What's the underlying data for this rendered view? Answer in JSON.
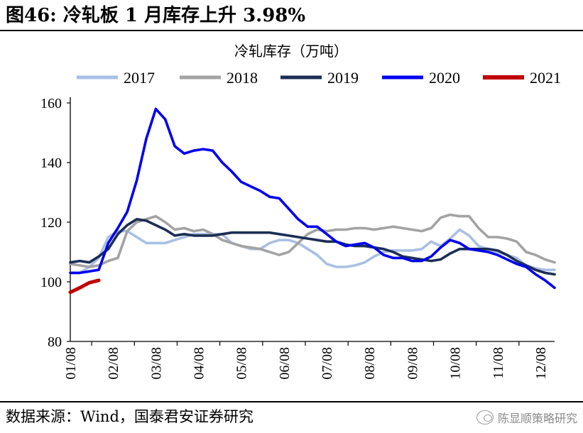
{
  "figure": {
    "title": "图46: 冷轧板 1 月库存上升 3.98%",
    "source": "数据来源：Wind，国泰君安证券研究",
    "watermark": "陈显顺策略研究"
  },
  "chart_data": {
    "type": "line",
    "title": "冷轧库存（万吨）",
    "xlabel": "",
    "ylabel": "",
    "ylim": [
      80,
      160
    ],
    "yticks": [
      80,
      100,
      120,
      140,
      160
    ],
    "xlim": [
      1,
      52
    ],
    "x_tick_labels": [
      "01/08",
      "02/08",
      "03/08",
      "04/08",
      "05/08",
      "06/08",
      "07/08",
      "08/08",
      "09/08",
      "10/08",
      "11/08",
      "12/08"
    ],
    "x_tick_weeks": [
      1,
      5.5,
      10,
      14.5,
      19,
      23.5,
      28,
      32.5,
      37,
      41.5,
      46,
      50.5
    ],
    "legend_position": "top",
    "grid": false,
    "series": [
      {
        "name": "2017",
        "color": "#a9c0e4",
        "x": [
          1,
          2,
          3,
          4,
          5,
          6,
          7,
          8,
          9,
          10,
          11,
          12,
          13,
          14,
          15,
          16,
          17,
          18,
          19,
          20,
          21,
          22,
          23,
          24,
          25,
          26,
          27,
          28,
          29,
          30,
          31,
          32,
          33,
          34,
          35,
          36,
          37,
          38,
          39,
          40,
          41,
          42,
          43,
          44,
          45,
          46,
          47,
          48,
          49,
          50,
          51,
          52
        ],
        "values": [
          103,
          103,
          105,
          108,
          115,
          117,
          117,
          115,
          113,
          113,
          113,
          114,
          115,
          116,
          116,
          116,
          116,
          113,
          112,
          111,
          111,
          113,
          114,
          114,
          113,
          111,
          109,
          106,
          105,
          105,
          105.5,
          106.5,
          108.5,
          110,
          110.5,
          110.5,
          110.5,
          111,
          113.5,
          112,
          114.5,
          117.5,
          115.5,
          112,
          111,
          110,
          109,
          108,
          105.5,
          104.5,
          104,
          104
        ]
      },
      {
        "name": "2018",
        "color": "#a3a3a3",
        "x": [
          1,
          2,
          3,
          4,
          5,
          6,
          7,
          8,
          9,
          10,
          11,
          12,
          13,
          14,
          15,
          16,
          17,
          18,
          19,
          20,
          21,
          22,
          23,
          24,
          25,
          26,
          27,
          28,
          29,
          30,
          31,
          32,
          33,
          34,
          35,
          36,
          37,
          38,
          39,
          40,
          41,
          42,
          43,
          44,
          45,
          46,
          47,
          48,
          49,
          50,
          51,
          52
        ],
        "values": [
          106,
          105.5,
          105,
          105.5,
          107,
          108,
          117,
          120,
          121,
          122,
          120,
          117.5,
          118,
          117,
          117.5,
          116,
          114,
          113,
          112,
          111.5,
          111,
          110,
          109,
          110,
          113,
          116,
          117.5,
          117,
          117.5,
          117.5,
          118,
          118,
          117.5,
          118,
          118.5,
          118,
          117.5,
          117,
          118,
          121.5,
          122.5,
          122,
          122,
          118,
          115,
          115,
          114.5,
          113.5,
          110,
          109,
          107.5,
          106.5
        ]
      },
      {
        "name": "2019",
        "color": "#1c2e55",
        "x": [
          1,
          2,
          3,
          4,
          5,
          6,
          7,
          8,
          9,
          10,
          11,
          12,
          13,
          14,
          15,
          16,
          17,
          18,
          19,
          20,
          21,
          22,
          23,
          24,
          25,
          26,
          27,
          28,
          29,
          30,
          31,
          32,
          33,
          34,
          35,
          36,
          37,
          38,
          39,
          40,
          41,
          42,
          43,
          44,
          45,
          46,
          47,
          48,
          49,
          50,
          51,
          52
        ],
        "values": [
          106.5,
          107,
          106.5,
          108.5,
          111,
          116,
          119,
          121,
          120.5,
          119,
          117.5,
          115.5,
          116,
          115.5,
          115.5,
          115.5,
          116,
          116.5,
          116.5,
          116.5,
          116.5,
          116.5,
          116,
          115.5,
          115,
          114.5,
          114,
          113.5,
          113.5,
          112.5,
          112,
          112,
          111.5,
          111,
          110,
          108.5,
          108,
          107.5,
          107,
          107.5,
          109.5,
          111,
          111,
          111,
          111,
          110.5,
          109,
          107,
          105.5,
          104,
          103,
          102.5
        ]
      },
      {
        "name": "2020",
        "color": "#0000ee",
        "x": [
          1,
          2,
          3,
          4,
          5,
          6,
          7,
          8,
          9,
          10,
          11,
          12,
          13,
          14,
          15,
          16,
          17,
          18,
          19,
          20,
          21,
          22,
          23,
          24,
          25,
          26,
          27,
          28,
          29,
          30,
          31,
          32,
          33,
          34,
          35,
          36,
          37,
          38,
          39,
          40,
          41,
          42,
          43,
          44,
          45,
          46,
          47,
          48,
          49,
          50,
          51,
          52
        ],
        "values": [
          103,
          103,
          103.5,
          104,
          113,
          118,
          123.5,
          134,
          148,
          158,
          154.5,
          145.5,
          143,
          144,
          144.5,
          144,
          140,
          137,
          133.5,
          132,
          130.5,
          128.5,
          128,
          124.5,
          121,
          118.5,
          118.5,
          116,
          113.5,
          112,
          112.5,
          113,
          111.5,
          109,
          108,
          108,
          107,
          107,
          108.5,
          111.5,
          114,
          113,
          111,
          110.5,
          110,
          109,
          107.5,
          106,
          105,
          102.5,
          100.5,
          98
        ]
      },
      {
        "name": "2021",
        "color": "#c00000",
        "x": [
          1,
          2,
          3,
          4
        ],
        "values": [
          96.5,
          98,
          99.7,
          100.5
        ]
      }
    ]
  }
}
